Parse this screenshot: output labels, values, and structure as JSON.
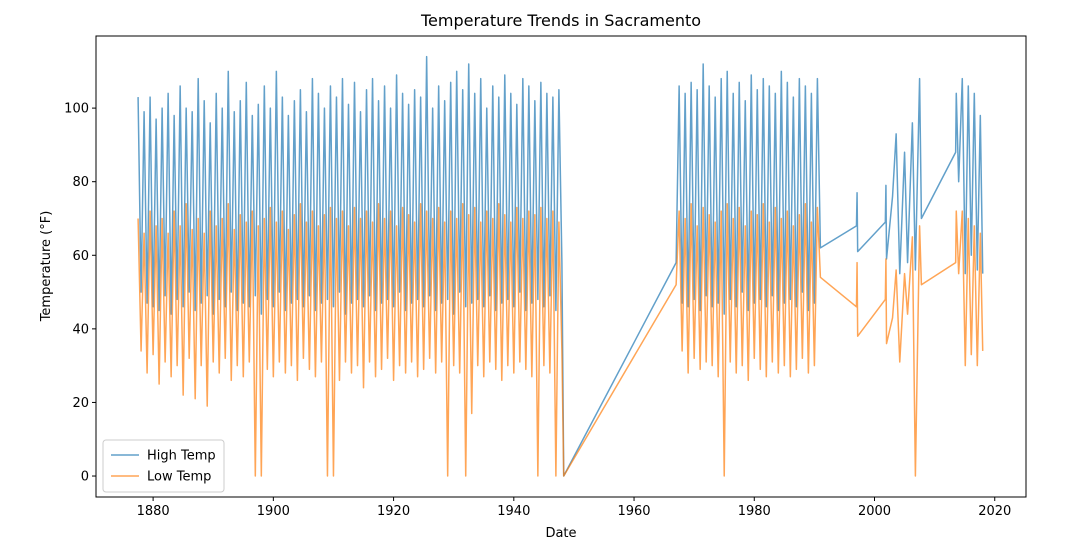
{
  "chart_data": {
    "type": "line",
    "title": "Temperature Trends in Sacramento",
    "xlabel": "Date",
    "ylabel": "Temperature (°F)",
    "xlim": [
      1870.5,
      2025.2
    ],
    "ylim": [
      -5.7,
      119.6
    ],
    "xticks": [
      1880,
      1900,
      1920,
      1940,
      1960,
      1980,
      2000,
      2020
    ],
    "yticks": [
      0,
      20,
      40,
      60,
      80,
      100
    ],
    "grid": false,
    "legend": "lower left",
    "x": [
      1877.5,
      1878,
      1878.5,
      1879,
      1879.5,
      1880,
      1880.5,
      1881,
      1881.5,
      1882,
      1882.5,
      1883,
      1883.5,
      1884,
      1884.5,
      1885,
      1885.5,
      1886,
      1886.5,
      1887,
      1887.5,
      1888,
      1888.5,
      1889,
      1889.5,
      1890,
      1890.5,
      1891,
      1891.5,
      1892,
      1892.5,
      1893,
      1893.5,
      1894,
      1894.5,
      1895,
      1895.5,
      1896,
      1896.5,
      1897,
      1897.5,
      1898,
      1898.5,
      1899,
      1899.5,
      1900,
      1900.5,
      1901,
      1901.5,
      1902,
      1902.5,
      1903,
      1903.5,
      1904,
      1904.5,
      1905,
      1905.5,
      1906,
      1906.5,
      1907,
      1907.5,
      1908,
      1908.5,
      1909,
      1909.5,
      1910,
      1910.5,
      1911,
      1911.5,
      1912,
      1912.5,
      1913,
      1913.5,
      1914,
      1914.5,
      1915,
      1915.5,
      1916,
      1916.5,
      1917,
      1917.5,
      1918,
      1918.5,
      1919,
      1919.5,
      1920,
      1920.5,
      1921,
      1921.5,
      1922,
      1922.5,
      1923,
      1923.5,
      1924,
      1924.5,
      1925,
      1925.5,
      1926,
      1926.5,
      1927,
      1927.5,
      1928,
      1928.5,
      1929,
      1929.5,
      1930,
      1930.5,
      1931,
      1931.5,
      1932,
      1932.5,
      1933,
      1933.5,
      1934,
      1934.5,
      1935,
      1935.5,
      1936,
      1936.5,
      1937,
      1937.5,
      1938,
      1938.5,
      1939,
      1939.5,
      1940,
      1940.5,
      1941,
      1941.5,
      1942,
      1942.5,
      1943,
      1943.5,
      1944,
      1944.5,
      1945,
      1945.5,
      1946,
      1946.5,
      1947,
      1947.5,
      1948,
      1948.3,
      1967,
      1967.5,
      1968,
      1968.5,
      1969,
      1969.5,
      1970,
      1970.5,
      1971,
      1971.5,
      1972,
      1972.5,
      1973,
      1973.5,
      1974,
      1974.5,
      1975,
      1975.5,
      1976,
      1976.5,
      1977,
      1977.5,
      1978,
      1978.5,
      1979,
      1979.5,
      1980,
      1980.5,
      1981,
      1981.5,
      1982,
      1982.5,
      1983,
      1983.5,
      1984,
      1984.5,
      1985,
      1985.5,
      1986,
      1986.5,
      1987,
      1987.5,
      1988,
      1988.5,
      1989,
      1989.5,
      1990,
      1990.5,
      1991,
      1997.0,
      1997.1,
      1997.2,
      2001.8,
      2001.9,
      2002.0,
      2003.0,
      2003.6,
      2004.2,
      2005.0,
      2005.5,
      2006.3,
      2006.8,
      2007.5,
      2007.8,
      2013.5,
      2013.6,
      2014.0,
      2014.6,
      2015.1,
      2015.6,
      2016.1,
      2016.6,
      2017.1,
      2017.6,
      2018.0
    ],
    "series": [
      {
        "name": "High Temp",
        "color": "#1f77b4",
        "values": [
          103,
          50,
          99,
          47,
          103,
          46,
          97,
          45,
          100,
          49,
          104,
          44,
          98,
          48,
          106,
          46,
          100,
          50,
          99,
          45,
          108,
          47,
          102,
          49,
          96,
          44,
          104,
          48,
          100,
          46,
          110,
          50,
          99,
          45,
          102,
          47,
          107,
          46,
          98,
          49,
          101,
          44,
          106,
          48,
          100,
          46,
          110,
          50,
          103,
          45,
          98,
          47,
          102,
          48,
          105,
          46,
          99,
          49,
          108,
          45,
          104,
          47,
          100,
          48,
          106,
          46,
          103,
          50,
          108,
          44,
          101,
          47,
          107,
          48,
          99,
          46,
          105,
          49,
          108,
          45,
          102,
          47,
          106,
          48,
          100,
          46,
          109,
          50,
          104,
          45,
          101,
          47,
          105,
          48,
          103,
          46,
          114,
          49,
          100,
          45,
          106,
          47,
          102,
          48,
          107,
          44,
          110,
          50,
          105,
          46,
          112,
          47,
          104,
          48,
          108,
          46,
          100,
          49,
          106,
          45,
          103,
          47,
          109,
          48,
          104,
          46,
          101,
          50,
          108,
          45,
          106,
          47,
          102,
          48,
          107,
          46,
          104,
          49,
          103,
          45,
          105,
          58,
          0,
          58,
          106,
          47,
          104,
          46,
          107,
          48,
          105,
          45,
          112,
          49,
          106,
          46,
          103,
          47,
          108,
          44,
          110,
          48,
          104,
          46,
          107,
          50,
          102,
          45,
          109,
          47,
          105,
          48,
          108,
          46,
          106,
          49,
          104,
          45,
          110,
          47,
          107,
          48,
          103,
          46,
          108,
          50,
          106,
          45,
          104,
          47,
          108,
          62,
          68,
          77,
          61,
          69,
          79,
          59,
          76,
          93,
          55,
          88,
          58,
          96,
          56,
          108,
          70,
          88,
          104,
          80,
          108,
          55,
          106,
          60,
          104,
          56,
          98,
          55
        ]
      },
      {
        "name": "Low Temp",
        "color": "#ff7f0e",
        "values": [
          70,
          34,
          66,
          28,
          72,
          33,
          68,
          25,
          70,
          31,
          66,
          27,
          72,
          30,
          68,
          22,
          74,
          32,
          67,
          21,
          70,
          30,
          66,
          19,
          72,
          31,
          68,
          28,
          70,
          32,
          74,
          26,
          67,
          30,
          71,
          27,
          69,
          31,
          72,
          0,
          68,
          0,
          70,
          29,
          73,
          27,
          69,
          31,
          72,
          28,
          67,
          30,
          71,
          26,
          74,
          32,
          69,
          29,
          72,
          27,
          68,
          31,
          71,
          0,
          73,
          0,
          70,
          26,
          72,
          31,
          68,
          28,
          73,
          30,
          70,
          24,
          72,
          31,
          69,
          27,
          74,
          29,
          70,
          32,
          72,
          26,
          68,
          30,
          73,
          28,
          71,
          31,
          69,
          27,
          74,
          29,
          72,
          32,
          70,
          28,
          73,
          31,
          69,
          0,
          72,
          30,
          70,
          28,
          74,
          0,
          71,
          17,
          73,
          30,
          69,
          27,
          72,
          31,
          70,
          29,
          74,
          26,
          71,
          30,
          69,
          28,
          73,
          31,
          70,
          29,
          72,
          27,
          71,
          0,
          73,
          30,
          70,
          28,
          72,
          0,
          69,
          34,
          0,
          52,
          72,
          34,
          70,
          28,
          74,
          32,
          68,
          29,
          73,
          31,
          71,
          30,
          69,
          27,
          72,
          0,
          74,
          31,
          70,
          28,
          73,
          30,
          68,
          26,
          72,
          32,
          71,
          29,
          74,
          27,
          69,
          31,
          73,
          28,
          70,
          30,
          72,
          27,
          68,
          29,
          71,
          32,
          74,
          28,
          69,
          30,
          73,
          54,
          46,
          58,
          38,
          48,
          59,
          36,
          43,
          56,
          31,
          55,
          44,
          65,
          0,
          68,
          52,
          58,
          72,
          55,
          72,
          30,
          70,
          33,
          68,
          30,
          66,
          34
        ]
      }
    ]
  }
}
